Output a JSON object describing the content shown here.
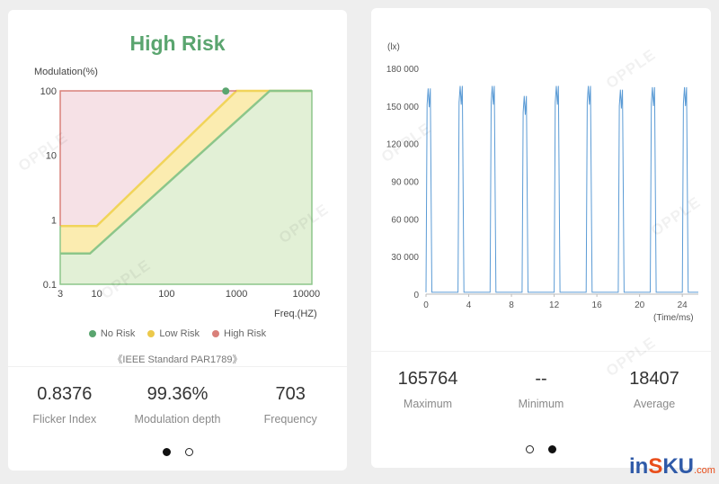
{
  "left_card": {
    "title": "High Risk",
    "y_axis_label": "Modulation(%)",
    "x_axis_label": "Freq.(HZ)",
    "y_ticks": [
      "100",
      "10",
      "1",
      "0.1"
    ],
    "x_ticks": [
      "3",
      "10",
      "100",
      "1000",
      "10000"
    ],
    "legend": [
      {
        "label": "No Risk",
        "color": "#5aa56f"
      },
      {
        "label": "Low Risk",
        "color": "#ecc94b"
      },
      {
        "label": "High Risk",
        "color": "#d9807a"
      }
    ],
    "standard_note": "《IEEE Standard PAR1789》",
    "measurement": {
      "frequency_hz": 703,
      "modulation_pct": 99.36
    },
    "stats": [
      {
        "value": "0.8376",
        "label": "Flicker Index"
      },
      {
        "value": "99.36%",
        "label": "Modulation depth"
      },
      {
        "value": "703",
        "label": "Frequency"
      }
    ],
    "pager": {
      "total": 2,
      "active": 0
    }
  },
  "right_card": {
    "y_unit": "(lx)",
    "x_unit": "(Time/ms)",
    "y_ticks": [
      "180 000",
      "150 000",
      "120 000",
      "90 000",
      "60 000",
      "30 000",
      "0"
    ],
    "x_ticks": [
      "0",
      "4",
      "8",
      "12",
      "16",
      "20",
      "24"
    ],
    "stats": [
      {
        "value": "165764",
        "label": "Maximum"
      },
      {
        "value": "--",
        "label": "Minimum"
      },
      {
        "value": "18407",
        "label": "Average"
      }
    ],
    "pager": {
      "total": 2,
      "active": 1
    }
  },
  "watermark_text": "OPPLE",
  "site_logo": {
    "in": "in",
    "s": "S",
    "ku": "KU",
    "com": ".com"
  },
  "colors": {
    "title_green": "#5aa56f",
    "no_risk_fill": "#e2f0d6",
    "no_risk_line": "#8cc68a",
    "low_risk_fill": "#fbecb0",
    "low_risk_line": "#f1d45a",
    "high_risk_fill": "#f6e1e6",
    "high_risk_line": "#d9807a",
    "waveform": "#5b9bd5"
  },
  "chart_data": [
    {
      "type": "area",
      "title": "High Risk",
      "ylabel": "Modulation(%)",
      "xlabel": "Freq.(HZ)",
      "x_scale": "log",
      "y_scale": "log",
      "xlim": [
        3,
        12000
      ],
      "ylim": [
        0.1,
        100
      ],
      "series": [
        {
          "name": "High Risk",
          "x": [
            3,
            10,
            1000,
            12000
          ],
          "y": [
            0.8,
            0.8,
            100,
            100
          ]
        },
        {
          "name": "Low Risk",
          "x": [
            3,
            10,
            1000,
            12000
          ],
          "y": [
            0.8,
            0.8,
            100,
            100
          ]
        },
        {
          "name": "No Risk",
          "x": [
            3,
            8,
            3000,
            12000
          ],
          "y": [
            0.3,
            0.3,
            100,
            100
          ]
        }
      ],
      "point": {
        "x": 703,
        "y": 99.36
      },
      "legend_position": "bottom",
      "grid": false
    },
    {
      "type": "line",
      "ylabel": "(lx)",
      "xlabel": "(Time/ms)",
      "xlim": [
        0,
        25.5
      ],
      "ylim": [
        0,
        180000
      ],
      "x_ticks": [
        0,
        4,
        8,
        12,
        16,
        20,
        24
      ],
      "y_ticks": [
        0,
        30000,
        60000,
        90000,
        120000,
        150000,
        180000
      ],
      "pulse_starts_ms": [
        0.0,
        3.0,
        6.0,
        9.0,
        12.0,
        15.0,
        18.0,
        21.0,
        24.0
      ],
      "pulse_peaks_lx": [
        164000,
        166000,
        166000,
        158000,
        166000,
        166000,
        163000,
        165000,
        165000
      ],
      "grid": false
    }
  ]
}
